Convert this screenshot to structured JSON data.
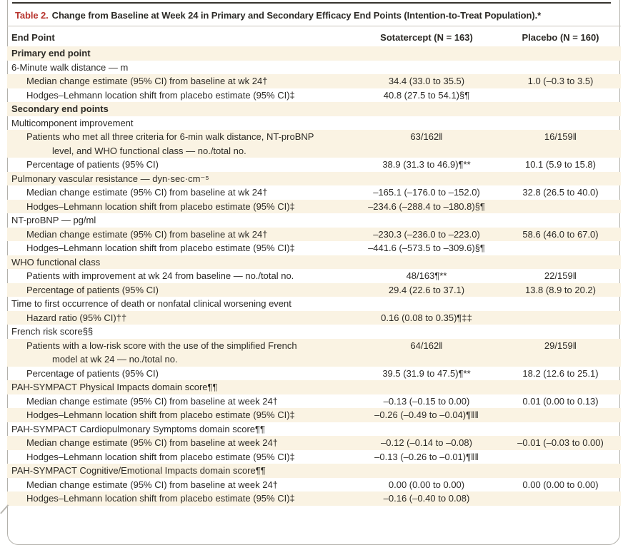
{
  "colors": {
    "accent_red": "#b7332d",
    "row_shade": "#faf3e3",
    "text": "#2c2a26"
  },
  "table": {
    "title_label": "Table 2.",
    "title_text": "Change from Baseline at Week 24 in Primary and Secondary Efficacy End Points (Intention-to-Treat Population).*",
    "columns": {
      "endpoint": "End Point",
      "sotatercept": "Sotatercept (N = 163)",
      "placebo": "Placebo (N = 160)"
    },
    "rows": [
      {
        "style": "section",
        "label": "Primary end point",
        "sota": "",
        "plac": ""
      },
      {
        "style": "category",
        "label": "6-Minute walk distance — m",
        "sota": "",
        "plac": ""
      },
      {
        "style": "sub",
        "label": "Median change estimate (95% CI) from baseline at wk 24†",
        "sota": "34.4 (33.0 to 35.5)",
        "plac": "1.0 (–0.3 to 3.5)"
      },
      {
        "style": "sub",
        "label": "Hodges–Lehmann location shift from placebo estimate (95% CI)‡",
        "sota": "40.8 (27.5 to 54.1)§¶",
        "plac": ""
      },
      {
        "style": "section",
        "label": "Secondary end points",
        "sota": "",
        "plac": ""
      },
      {
        "style": "category",
        "label": "Multicomponent improvement",
        "sota": "",
        "plac": ""
      },
      {
        "style": "sub",
        "label": "Patients who met all three criteria for 6-min walk distance, NT-proBNP",
        "label2": "level, and WHO functional class — no./total no.",
        "sota": "63/162‖",
        "plac": "16/159‖"
      },
      {
        "style": "sub",
        "label": "Percentage of patients (95% CI)",
        "sota": "38.9 (31.3 to 46.9)¶**",
        "plac": "10.1 (5.9 to 15.8)"
      },
      {
        "style": "category",
        "label": "Pulmonary vascular resistance — dyn·sec·cm⁻⁵",
        "sota": "",
        "plac": ""
      },
      {
        "style": "sub",
        "label": "Median change estimate (95% CI) from baseline at wk 24†",
        "sota": "–165.1 (–176.0 to –152.0)",
        "plac": "32.8 (26.5 to 40.0)"
      },
      {
        "style": "sub",
        "label": "Hodges–Lehmann location shift from placebo estimate (95% CI)‡",
        "sota": "–234.6 (–288.4 to –180.8)§¶",
        "plac": ""
      },
      {
        "style": "category",
        "label": "NT-proBNP — pg/ml",
        "sota": "",
        "plac": ""
      },
      {
        "style": "sub",
        "label": "Median change estimate (95% CI) from baseline at wk 24†",
        "sota": "–230.3 (–236.0 to –223.0)",
        "plac": "58.6 (46.0 to 67.0)"
      },
      {
        "style": "sub",
        "label": "Hodges–Lehmann location shift from placebo estimate (95% CI)‡",
        "sota": "–441.6 (–573.5 to –309.6)§¶",
        "plac": ""
      },
      {
        "style": "category",
        "label": "WHO functional class",
        "sota": "",
        "plac": ""
      },
      {
        "style": "sub",
        "label": "Patients with improvement at wk 24 from baseline — no./total no.",
        "sota": "48/163¶**",
        "plac": "22/159‖"
      },
      {
        "style": "sub",
        "label": "Percentage of patients (95% CI)",
        "sota": "29.4 (22.6 to 37.1)",
        "plac": "13.8 (8.9 to 20.2)"
      },
      {
        "style": "category",
        "label": "Time to first occurrence of death or nonfatal clinical worsening event",
        "sota": "",
        "plac": ""
      },
      {
        "style": "sub",
        "label": "Hazard ratio (95% CI)††",
        "sota": "0.16 (0.08 to 0.35)¶‡‡",
        "plac": ""
      },
      {
        "style": "category",
        "label": "French risk score§§",
        "sota": "",
        "plac": ""
      },
      {
        "style": "sub",
        "label": "Patients with a low-risk score with the use of the simplified French",
        "label2": "model at wk 24 — no./total no.",
        "sota": "64/162‖",
        "plac": "29/159‖"
      },
      {
        "style": "sub",
        "label": "Percentage of patients (95% CI)",
        "sota": "39.5 (31.9 to 47.5)¶**",
        "plac": "18.2 (12.6 to 25.1)"
      },
      {
        "style": "category",
        "label": "PAH-SYMPACT Physical Impacts domain score¶¶",
        "sota": "",
        "plac": ""
      },
      {
        "style": "sub",
        "label": "Median change estimate (95% CI) from baseline at week 24†",
        "sota": "–0.13 (–0.15 to 0.00)",
        "plac": "0.01 (0.00 to 0.13)"
      },
      {
        "style": "sub",
        "label": "Hodges–Lehmann location shift from placebo estimate (95% CI)‡",
        "sota": "–0.26 (–0.49 to –0.04)¶‖‖",
        "plac": ""
      },
      {
        "style": "category",
        "label": "PAH-SYMPACT Cardiopulmonary Symptoms domain score¶¶",
        "sota": "",
        "plac": ""
      },
      {
        "style": "sub",
        "label": "Median change estimate (95% CI) from baseline at week 24†",
        "sota": "–0.12 (–0.14 to –0.08)",
        "plac": "–0.01 (–0.03 to 0.00)"
      },
      {
        "style": "sub",
        "label": "Hodges–Lehmann location shift from placebo estimate (95% CI)‡",
        "sota": "–0.13 (–0.26 to –0.01)¶‖‖",
        "plac": ""
      },
      {
        "style": "category",
        "label": "PAH-SYMPACT Cognitive/Emotional Impacts domain score¶¶",
        "sota": "",
        "plac": ""
      },
      {
        "style": "sub",
        "label": "Median change estimate (95% CI) from baseline at week 24†",
        "sota": "0.00 (0.00 to 0.00)",
        "plac": "0.00 (0.00 to 0.00)"
      },
      {
        "style": "sub",
        "label": "Hodges–Lehmann location shift from placebo estimate (95% CI)‡",
        "sota": "–0.16 (–0.40 to 0.08)",
        "plac": ""
      }
    ]
  }
}
